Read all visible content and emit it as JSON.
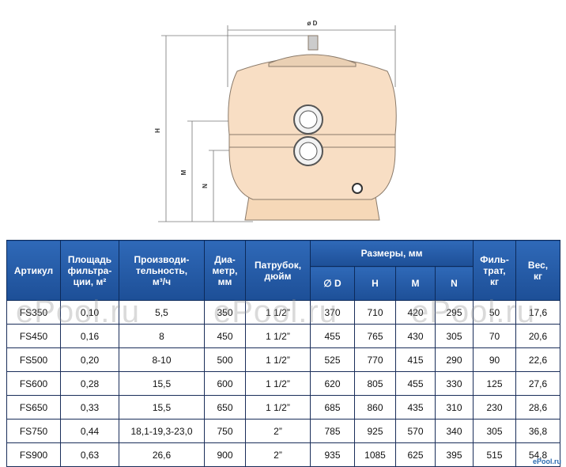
{
  "drawing": {
    "labels": {
      "d": "ø D",
      "h": "H",
      "m": "M",
      "n": "N"
    }
  },
  "table": {
    "headers": [
      [
        "Артикул"
      ],
      [
        "Площадь",
        "фильтра-",
        "ции, м²"
      ],
      [
        "Производи-",
        "тельность,",
        "м³/ч"
      ],
      [
        "Диа-",
        "метр,",
        "мм"
      ],
      [
        "Патрубок,",
        "дюйм"
      ],
      [
        "Размеры, мм"
      ],
      [
        "Филь-",
        "трат,",
        "кг"
      ],
      [
        "Вес,",
        "кг"
      ]
    ],
    "subheaders": [
      "∅ D",
      "H",
      "M",
      "N"
    ],
    "rows": [
      [
        "FS350",
        "0,10",
        "5,5",
        "350",
        "1 1/2”",
        "370",
        "710",
        "420",
        "295",
        "50",
        "17,6"
      ],
      [
        "FS450",
        "0,16",
        "8",
        "450",
        "1 1/2”",
        "455",
        "765",
        "430",
        "305",
        "70",
        "20,6"
      ],
      [
        "FS500",
        "0,20",
        "8-10",
        "500",
        "1 1/2”",
        "525",
        "770",
        "415",
        "290",
        "90",
        "22,6"
      ],
      [
        "FS600",
        "0,28",
        "15,5",
        "600",
        "1 1/2”",
        "620",
        "805",
        "455",
        "330",
        "125",
        "27,6"
      ],
      [
        "FS650",
        "0,33",
        "15,5",
        "650",
        "1 1/2”",
        "685",
        "860",
        "435",
        "310",
        "230",
        "28,6"
      ],
      [
        "FS750",
        "0,44",
        "18,1-19,3-23,0",
        "750",
        "2”",
        "785",
        "925",
        "570",
        "340",
        "305",
        "36,8"
      ],
      [
        "FS900",
        "0,63",
        "26,6",
        "900",
        "2”",
        "935",
        "1085",
        "625",
        "395",
        "515",
        "54,8"
      ]
    ]
  },
  "watermark": "ePool.ru",
  "logo": "ePool.ru"
}
